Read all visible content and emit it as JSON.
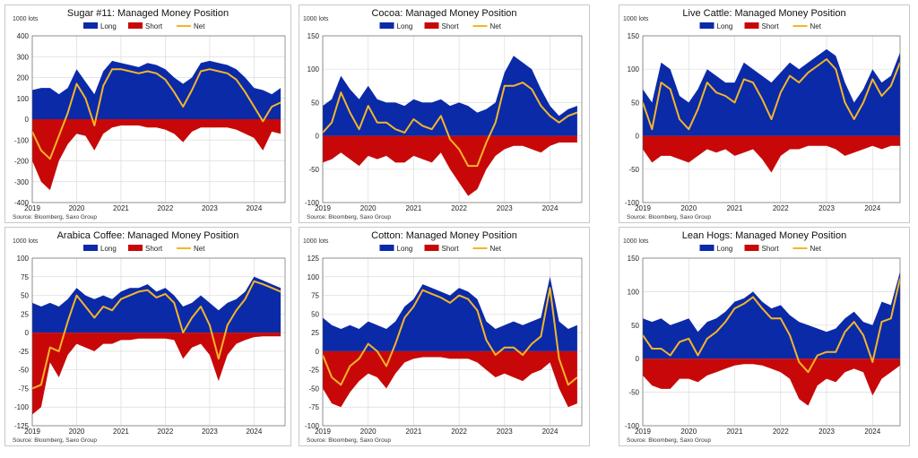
{
  "colors": {
    "long": "#0a2aa8",
    "short": "#c80808",
    "net": "#f5b528",
    "grid": "#dcdcdc",
    "axis": "#555555"
  },
  "legend": {
    "long": "Long",
    "short": "Short",
    "net": "Net"
  },
  "source": "Source:  Bloomberg,  Saxo Group",
  "chart_data": [
    {
      "id": "sugar",
      "type": "area",
      "title": "Sugar #11: Managed Money Position",
      "unit_label": "1000 lots",
      "ylim": [
        -400,
        400
      ],
      "yticks": [
        400,
        300,
        200,
        100,
        0,
        -100,
        -200,
        -300,
        -400
      ],
      "xlim": [
        2019,
        2024.7
      ],
      "xticks": [
        2019,
        2020,
        2021,
        2022,
        2023,
        2024
      ],
      "x": [
        2019.0,
        2019.2,
        2019.4,
        2019.6,
        2019.8,
        2020.0,
        2020.2,
        2020.4,
        2020.6,
        2020.8,
        2021.0,
        2021.2,
        2021.4,
        2021.6,
        2021.8,
        2022.0,
        2022.2,
        2022.4,
        2022.6,
        2022.8,
        2023.0,
        2023.2,
        2023.4,
        2023.6,
        2023.8,
        2024.0,
        2024.2,
        2024.4,
        2024.6
      ],
      "series": [
        {
          "name": "Long",
          "values": [
            140,
            150,
            150,
            120,
            150,
            240,
            180,
            120,
            230,
            280,
            270,
            260,
            250,
            270,
            260,
            240,
            200,
            170,
            200,
            270,
            280,
            270,
            260,
            240,
            200,
            150,
            140,
            120,
            150
          ]
        },
        {
          "name": "Short",
          "values": [
            -200,
            -300,
            -340,
            -200,
            -120,
            -70,
            -80,
            -150,
            -70,
            -40,
            -30,
            -30,
            -30,
            -40,
            -40,
            -50,
            -70,
            -110,
            -60,
            -40,
            -40,
            -40,
            -40,
            -50,
            -70,
            -90,
            -150,
            -60,
            -70
          ]
        },
        {
          "name": "Net",
          "values": [
            -60,
            -150,
            -190,
            -80,
            30,
            170,
            100,
            -30,
            160,
            240,
            240,
            230,
            220,
            230,
            220,
            190,
            130,
            60,
            140,
            230,
            240,
            230,
            220,
            190,
            130,
            60,
            -10,
            60,
            80
          ]
        }
      ]
    },
    {
      "id": "cocoa",
      "type": "area",
      "title": "Cocoa: Managed Money Position",
      "unit_label": "1000 lots",
      "ylim": [
        -100,
        150
      ],
      "yticks": [
        150,
        100,
        50,
        0,
        -50,
        -100
      ],
      "xlim": [
        2019,
        2024.7
      ],
      "xticks": [
        2019,
        2020,
        2021,
        2022,
        2023,
        2024
      ],
      "x": [
        2019.0,
        2019.2,
        2019.4,
        2019.6,
        2019.8,
        2020.0,
        2020.2,
        2020.4,
        2020.6,
        2020.8,
        2021.0,
        2021.2,
        2021.4,
        2021.6,
        2021.8,
        2022.0,
        2022.2,
        2022.4,
        2022.6,
        2022.8,
        2023.0,
        2023.2,
        2023.4,
        2023.6,
        2023.8,
        2024.0,
        2024.2,
        2024.4,
        2024.6
      ],
      "series": [
        {
          "name": "Long",
          "values": [
            45,
            55,
            90,
            70,
            55,
            75,
            55,
            50,
            50,
            45,
            55,
            50,
            50,
            55,
            45,
            50,
            45,
            35,
            40,
            50,
            95,
            120,
            110,
            100,
            70,
            45,
            30,
            40,
            45
          ]
        },
        {
          "name": "Short",
          "values": [
            -40,
            -35,
            -25,
            -35,
            -45,
            -30,
            -35,
            -30,
            -40,
            -40,
            -30,
            -35,
            -40,
            -25,
            -50,
            -70,
            -90,
            -80,
            -50,
            -30,
            -20,
            -15,
            -15,
            -20,
            -25,
            -15,
            -10,
            -10,
            -10
          ]
        },
        {
          "name": "Net",
          "values": [
            5,
            20,
            65,
            35,
            10,
            45,
            20,
            20,
            10,
            5,
            25,
            15,
            10,
            30,
            -5,
            -20,
            -45,
            -45,
            -10,
            20,
            75,
            75,
            80,
            70,
            45,
            30,
            20,
            30,
            35
          ]
        }
      ]
    },
    {
      "id": "cattle",
      "type": "area",
      "title": "Live Cattle: Managed Money Position",
      "unit_label": "1000 lots",
      "ylim": [
        -100,
        150
      ],
      "yticks": [
        150,
        100,
        50,
        0,
        -50,
        -100
      ],
      "xlim": [
        2019,
        2024.6
      ],
      "xticks": [
        2019,
        2020,
        2021,
        2022,
        2023,
        2024
      ],
      "x": [
        2019.0,
        2019.2,
        2019.4,
        2019.6,
        2019.8,
        2020.0,
        2020.2,
        2020.4,
        2020.6,
        2020.8,
        2021.0,
        2021.2,
        2021.4,
        2021.6,
        2021.8,
        2022.0,
        2022.2,
        2022.4,
        2022.6,
        2022.8,
        2023.0,
        2023.2,
        2023.4,
        2023.6,
        2023.8,
        2024.0,
        2024.2,
        2024.4,
        2024.6
      ],
      "series": [
        {
          "name": "Long",
          "values": [
            70,
            50,
            110,
            100,
            60,
            50,
            70,
            100,
            90,
            80,
            80,
            110,
            100,
            90,
            80,
            95,
            110,
            100,
            110,
            120,
            130,
            120,
            80,
            50,
            70,
            100,
            80,
            90,
            125
          ]
        },
        {
          "name": "Short",
          "values": [
            -20,
            -40,
            -30,
            -30,
            -35,
            -40,
            -30,
            -20,
            -25,
            -20,
            -30,
            -25,
            -20,
            -35,
            -55,
            -30,
            -20,
            -20,
            -15,
            -15,
            -15,
            -20,
            -30,
            -25,
            -20,
            -15,
            -20,
            -15,
            -15
          ]
        },
        {
          "name": "Net",
          "values": [
            50,
            10,
            80,
            70,
            25,
            10,
            40,
            80,
            65,
            60,
            50,
            85,
            80,
            55,
            25,
            65,
            90,
            80,
            95,
            105,
            115,
            100,
            50,
            25,
            50,
            85,
            60,
            75,
            110
          ]
        }
      ]
    },
    {
      "id": "arabica",
      "type": "area",
      "title": "Arabica Coffee: Managed Money Position",
      "unit_label": "1000 lots",
      "ylim": [
        -125,
        100
      ],
      "yticks": [
        100,
        75,
        50,
        25,
        0,
        -25,
        -50,
        -75,
        -100,
        -125
      ],
      "xlim": [
        2019,
        2024.7
      ],
      "xticks": [
        2019,
        2020,
        2021,
        2022,
        2023,
        2024
      ],
      "x": [
        2019.0,
        2019.2,
        2019.4,
        2019.6,
        2019.8,
        2020.0,
        2020.2,
        2020.4,
        2020.6,
        2020.8,
        2021.0,
        2021.2,
        2021.4,
        2021.6,
        2021.8,
        2022.0,
        2022.2,
        2022.4,
        2022.6,
        2022.8,
        2023.0,
        2023.2,
        2023.4,
        2023.6,
        2023.8,
        2024.0,
        2024.2,
        2024.4,
        2024.6
      ],
      "series": [
        {
          "name": "Long",
          "values": [
            40,
            35,
            40,
            35,
            45,
            60,
            50,
            45,
            50,
            45,
            55,
            60,
            60,
            65,
            55,
            60,
            50,
            35,
            40,
            50,
            40,
            30,
            40,
            45,
            55,
            75,
            70,
            65,
            60
          ]
        },
        {
          "name": "Short",
          "values": [
            -110,
            -100,
            -40,
            -60,
            -30,
            -15,
            -20,
            -25,
            -15,
            -15,
            -10,
            -10,
            -8,
            -8,
            -8,
            -8,
            -10,
            -35,
            -20,
            -15,
            -30,
            -65,
            -30,
            -15,
            -10,
            -6,
            -5,
            -5,
            -5
          ]
        },
        {
          "name": "Net",
          "values": [
            -75,
            -70,
            -20,
            -25,
            15,
            50,
            35,
            20,
            35,
            30,
            45,
            50,
            55,
            57,
            47,
            52,
            40,
            0,
            20,
            35,
            10,
            -35,
            10,
            30,
            45,
            69,
            65,
            60,
            55
          ]
        }
      ]
    },
    {
      "id": "cotton",
      "type": "area",
      "title": "Cotton: Managed Money Position",
      "unit_label": "1000 lots",
      "ylim": [
        -100,
        125
      ],
      "yticks": [
        125,
        100,
        75,
        50,
        25,
        0,
        -25,
        -50,
        -75,
        -100
      ],
      "xlim": [
        2019,
        2024.7
      ],
      "xticks": [
        2019,
        2020,
        2021,
        2022,
        2023,
        2024
      ],
      "x": [
        2019.0,
        2019.2,
        2019.4,
        2019.6,
        2019.8,
        2020.0,
        2020.2,
        2020.4,
        2020.6,
        2020.8,
        2021.0,
        2021.2,
        2021.4,
        2021.6,
        2021.8,
        2022.0,
        2022.2,
        2022.4,
        2022.6,
        2022.8,
        2023.0,
        2023.2,
        2023.4,
        2023.6,
        2023.8,
        2024.0,
        2024.2,
        2024.4,
        2024.6
      ],
      "series": [
        {
          "name": "Long",
          "values": [
            45,
            35,
            30,
            35,
            30,
            40,
            35,
            30,
            40,
            60,
            70,
            90,
            85,
            80,
            75,
            85,
            80,
            70,
            40,
            30,
            35,
            40,
            35,
            40,
            45,
            100,
            40,
            30,
            35
          ]
        },
        {
          "name": "Short",
          "values": [
            -50,
            -70,
            -75,
            -55,
            -40,
            -30,
            -35,
            -50,
            -30,
            -15,
            -10,
            -8,
            -8,
            -8,
            -10,
            -10,
            -10,
            -15,
            -25,
            -35,
            -30,
            -35,
            -40,
            -30,
            -25,
            -15,
            -50,
            -75,
            -70
          ]
        },
        {
          "name": "Net",
          "values": [
            -5,
            -35,
            -45,
            -20,
            -10,
            10,
            0,
            -20,
            10,
            45,
            60,
            82,
            77,
            72,
            65,
            75,
            70,
            55,
            15,
            -5,
            5,
            5,
            -5,
            10,
            20,
            85,
            -10,
            -45,
            -35
          ]
        }
      ]
    },
    {
      "id": "hogs",
      "type": "area",
      "title": "Lean Hogs: Managed Money Position",
      "unit_label": "1000 lots",
      "ylim": [
        -100,
        150
      ],
      "yticks": [
        150,
        100,
        50,
        0,
        -50,
        -100
      ],
      "xlim": [
        2019,
        2024.6
      ],
      "xticks": [
        2019,
        2020,
        2021,
        2022,
        2023,
        2024
      ],
      "x": [
        2019.0,
        2019.2,
        2019.4,
        2019.6,
        2019.8,
        2020.0,
        2020.2,
        2020.4,
        2020.6,
        2020.8,
        2021.0,
        2021.2,
        2021.4,
        2021.6,
        2021.8,
        2022.0,
        2022.2,
        2022.4,
        2022.6,
        2022.8,
        2023.0,
        2023.2,
        2023.4,
        2023.6,
        2023.8,
        2024.0,
        2024.2,
        2024.4,
        2024.6
      ],
      "series": [
        {
          "name": "Long",
          "values": [
            60,
            55,
            60,
            50,
            55,
            60,
            40,
            55,
            60,
            70,
            85,
            90,
            100,
            85,
            75,
            80,
            65,
            55,
            50,
            45,
            40,
            45,
            60,
            70,
            55,
            50,
            85,
            80,
            130
          ]
        },
        {
          "name": "Short",
          "values": [
            -25,
            -40,
            -45,
            -45,
            -30,
            -30,
            -35,
            -25,
            -20,
            -15,
            -10,
            -8,
            -8,
            -10,
            -15,
            -20,
            -30,
            -60,
            -70,
            -40,
            -30,
            -35,
            -20,
            -15,
            -20,
            -55,
            -30,
            -20,
            -10
          ]
        },
        {
          "name": "Net",
          "values": [
            35,
            15,
            15,
            5,
            25,
            30,
            5,
            30,
            40,
            55,
            75,
            82,
            92,
            75,
            60,
            60,
            35,
            -5,
            -20,
            5,
            10,
            10,
            40,
            55,
            35,
            -5,
            55,
            60,
            120
          ]
        }
      ]
    }
  ]
}
